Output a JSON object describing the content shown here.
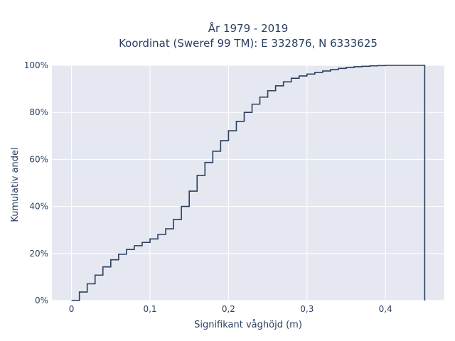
{
  "chart_data": {
    "type": "line",
    "title": "År 1979 - 2019",
    "subtitle": "Koordinat (Sweref 99 TM): E 332876, N 6333625",
    "xlabel": "Signifikant våghöjd (m)",
    "ylabel": "Kumulativ andel",
    "xlim": [
      -0.025,
      0.475
    ],
    "ylim": [
      0,
      1
    ],
    "x_tick_labels": [
      "0",
      "0,1",
      "0,2",
      "0,3",
      "0,4"
    ],
    "x_tick_values": [
      0,
      0.1,
      0.2,
      0.3,
      0.4
    ],
    "y_tick_labels": [
      "0%",
      "20%",
      "40%",
      "60%",
      "80%",
      "100%"
    ],
    "y_tick_values": [
      0,
      0.2,
      0.4,
      0.6,
      0.8,
      1.0
    ],
    "grid": true,
    "line_shape": "step",
    "colors": {
      "plot_bg": "#e5e8f0",
      "grid": "#ffffff",
      "line": "#2a3f5f",
      "text": "#2a3f5f"
    },
    "x": [
      0,
      0.01,
      0.02,
      0.03,
      0.04,
      0.05,
      0.06,
      0.07,
      0.08,
      0.09,
      0.1,
      0.11,
      0.12,
      0.13,
      0.14,
      0.15,
      0.16,
      0.17,
      0.18,
      0.19,
      0.2,
      0.21,
      0.22,
      0.23,
      0.24,
      0.25,
      0.26,
      0.27,
      0.28,
      0.29,
      0.3,
      0.31,
      0.32,
      0.33,
      0.34,
      0.35,
      0.36,
      0.37,
      0.38,
      0.39,
      0.4,
      0.41,
      0.42,
      0.43,
      0.44,
      0.45
    ],
    "y": [
      0.0,
      0.036,
      0.071,
      0.108,
      0.143,
      0.173,
      0.197,
      0.217,
      0.233,
      0.247,
      0.262,
      0.281,
      0.305,
      0.345,
      0.4,
      0.465,
      0.532,
      0.587,
      0.635,
      0.68,
      0.722,
      0.762,
      0.8,
      0.835,
      0.865,
      0.892,
      0.913,
      0.93,
      0.945,
      0.955,
      0.963,
      0.97,
      0.976,
      0.982,
      0.987,
      0.991,
      0.994,
      0.996,
      0.998,
      0.999,
      1.0,
      1.0,
      1.0,
      1.0,
      1.0,
      1.0
    ]
  }
}
